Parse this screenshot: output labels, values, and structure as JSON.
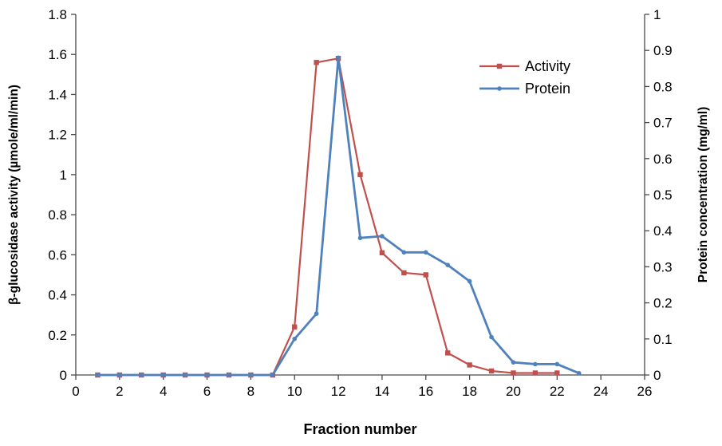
{
  "chart_data": {
    "type": "line",
    "title": "",
    "x_axis": {
      "label": "Fraction number",
      "min": 0,
      "max": 26,
      "tick_labels": [
        "0",
        "2",
        "4",
        "6",
        "8",
        "10",
        "12",
        "14",
        "16",
        "18",
        "20",
        "22",
        "24",
        "26"
      ]
    },
    "y_axis_left": {
      "label": "β-glucosidase activity (µmole/ml/min)",
      "min": 0,
      "max": 1.8,
      "tick_labels": [
        "0",
        "0.2",
        "0.4",
        "0.6",
        "0.8",
        "1",
        "1.2",
        "1.4",
        "1.6",
        "1.8"
      ]
    },
    "y_axis_right": {
      "label": "Protein concentration (mg/ml)",
      "min": 0,
      "max": 1,
      "tick_labels": [
        "0",
        "0.1",
        "0.2",
        "0.3",
        "0.4",
        "0.5",
        "0.6",
        "0.7",
        "0.8",
        "0.9",
        "1"
      ]
    },
    "legend": {
      "position": "top-right",
      "entries": [
        "Activity",
        "Protein"
      ]
    },
    "grid": false,
    "axis_color": "#4a4a4a",
    "series": [
      {
        "name": "Activity",
        "axis": "left",
        "color": "#C0504D",
        "marker": "square",
        "x": [
          1,
          2,
          3,
          4,
          5,
          6,
          7,
          8,
          9,
          10,
          11,
          12,
          13,
          14,
          15,
          16,
          17,
          18,
          19,
          20,
          21,
          22
        ],
        "y": [
          0,
          0,
          0,
          0,
          0,
          0,
          0,
          0,
          0,
          0.24,
          1.56,
          1.58,
          1.0,
          0.61,
          0.51,
          0.5,
          0.11,
          0.05,
          0.02,
          0.01,
          0.01,
          0.01
        ]
      },
      {
        "name": "Protein",
        "axis": "right",
        "color": "#4F81BD",
        "marker": "dot",
        "x": [
          1,
          2,
          3,
          4,
          5,
          6,
          7,
          8,
          9,
          10,
          11,
          12,
          13,
          14,
          15,
          16,
          17,
          18,
          19,
          20,
          21,
          22,
          23
        ],
        "y": [
          0,
          0,
          0,
          0,
          0,
          0,
          0,
          0,
          0,
          0.1,
          0.17,
          0.88,
          0.38,
          0.385,
          0.34,
          0.34,
          0.305,
          0.26,
          0.105,
          0.035,
          0.03,
          0.03,
          0.005
        ]
      }
    ]
  }
}
